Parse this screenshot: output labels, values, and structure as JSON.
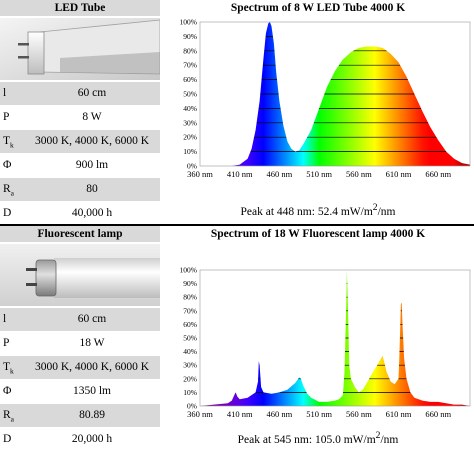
{
  "top": {
    "left_title": "LED Tube",
    "chart_title": "Spectrum of 8 W LED Tube 4000 K",
    "specs": [
      {
        "sym": "l",
        "sub": "",
        "value": "60 cm"
      },
      {
        "sym": "P",
        "sub": "",
        "value": "8 W"
      },
      {
        "sym": "T",
        "sub": "k",
        "value": "3000 K, 4000 K, 6000 K"
      },
      {
        "sym": "Φ",
        "sub": "",
        "value": "900 lm"
      },
      {
        "sym": "R",
        "sub": "a",
        "value": "80"
      },
      {
        "sym": "D",
        "sub": "",
        "value": "40,000 h"
      }
    ],
    "peak_prefix": "Peak at 448 nm: 52.4 mW/m",
    "peak_sup": "2",
    "peak_suffix": "/nm"
  },
  "bottom": {
    "left_title": "Fluorescent lamp",
    "chart_title": "Spectrum of 18 W Fluorescent lamp 4000 K",
    "specs": [
      {
        "sym": "l",
        "sub": "",
        "value": "60 cm"
      },
      {
        "sym": "P",
        "sub": "",
        "value": "18 W"
      },
      {
        "sym": "T",
        "sub": "k",
        "value": "3000 K, 4000 K, 6000 K"
      },
      {
        "sym": "Φ",
        "sub": "",
        "value": "1350 lm"
      },
      {
        "sym": "R",
        "sub": "a",
        "value": "80.89"
      },
      {
        "sym": "D",
        "sub": "",
        "value": "20,000 h"
      }
    ],
    "peak_prefix": "Peak at 545 nm: 105.0 mW/m",
    "peak_sup": "2",
    "peak_suffix": "/nm"
  },
  "chart_data": [
    {
      "type": "area",
      "title": "Spectrum of 8 W LED Tube 4000 K",
      "xlabel": "",
      "ylabel": "",
      "xlim": [
        360,
        700
      ],
      "ylim": [
        0,
        100
      ],
      "x_ticks": [
        "360 nm",
        "410 nm",
        "460 nm",
        "510 nm",
        "560 nm",
        "610 nm",
        "660 nm"
      ],
      "y_ticks": [
        "100%",
        "90%",
        "80%",
        "70%",
        "60%",
        "50%",
        "40%",
        "30%",
        "20%",
        "10%",
        "0%"
      ],
      "grid": true,
      "x": [
        360,
        400,
        410,
        420,
        425,
        430,
        435,
        440,
        443,
        446,
        448,
        450,
        453,
        456,
        460,
        465,
        470,
        475,
        480,
        485,
        490,
        500,
        510,
        520,
        530,
        540,
        550,
        560,
        570,
        580,
        590,
        600,
        610,
        620,
        630,
        640,
        650,
        660,
        670,
        680,
        690,
        700
      ],
      "y": [
        0,
        0,
        1,
        5,
        12,
        25,
        45,
        75,
        92,
        99,
        100,
        97,
        85,
        65,
        45,
        28,
        17,
        12,
        10,
        11,
        15,
        25,
        40,
        55,
        66,
        74,
        79,
        82,
        83,
        83,
        82,
        78,
        72,
        62,
        50,
        38,
        27,
        18,
        10,
        5,
        2,
        1
      ]
    },
    {
      "type": "area",
      "title": "Spectrum of 18 W Fluorescent lamp 4000 K",
      "xlabel": "",
      "ylabel": "",
      "xlim": [
        360,
        700
      ],
      "ylim": [
        0,
        100
      ],
      "x_ticks": [
        "360 nm",
        "410 nm",
        "460 nm",
        "510 nm",
        "560 nm",
        "610 nm",
        "660 nm"
      ],
      "y_ticks": [
        "100%",
        "90%",
        "80%",
        "70%",
        "60%",
        "50%",
        "40%",
        "30%",
        "20%",
        "10%",
        "0%"
      ],
      "grid": true,
      "x": [
        360,
        395,
        400,
        404,
        405,
        407,
        410,
        420,
        430,
        433,
        434,
        435,
        437,
        440,
        450,
        460,
        470,
        480,
        485,
        487,
        490,
        495,
        500,
        510,
        520,
        530,
        535,
        540,
        542,
        544,
        545,
        546,
        548,
        550,
        555,
        560,
        565,
        570,
        575,
        580,
        585,
        588,
        590,
        593,
        595,
        600,
        605,
        610,
        611,
        612,
        613,
        614,
        615,
        617,
        620,
        625,
        630,
        640,
        650,
        660,
        670,
        680,
        690,
        700
      ],
      "y": [
        0,
        2,
        4,
        9,
        10,
        7,
        5,
        6,
        10,
        18,
        33,
        30,
        14,
        10,
        9,
        10,
        12,
        17,
        21,
        20,
        15,
        9,
        6,
        3,
        3,
        4,
        5,
        8,
        25,
        70,
        100,
        80,
        30,
        20,
        14,
        10,
        12,
        17,
        22,
        27,
        32,
        35,
        37,
        30,
        25,
        18,
        16,
        20,
        35,
        55,
        75,
        76,
        60,
        35,
        20,
        10,
        6,
        4,
        3,
        3,
        2,
        1,
        1,
        0
      ]
    }
  ]
}
